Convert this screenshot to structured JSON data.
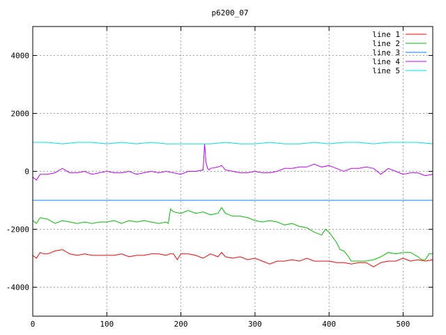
{
  "chart_data": {
    "type": "line",
    "title": "p6200_07",
    "xlabel": "",
    "ylabel": "",
    "xlim": [
      0,
      540
    ],
    "ylim": [
      -5000,
      5000
    ],
    "x_ticks": [
      0,
      100,
      200,
      300,
      400,
      500
    ],
    "y_ticks": [
      -4000,
      -2000,
      0,
      2000,
      4000
    ],
    "grid": true,
    "legend_position": "top-right",
    "series": [
      {
        "name": "line 1",
        "color": "#ff0000",
        "x": [
          0,
          5,
          10,
          15,
          20,
          30,
          40,
          50,
          60,
          70,
          80,
          90,
          100,
          110,
          120,
          130,
          140,
          150,
          160,
          170,
          180,
          185,
          190,
          195,
          200,
          210,
          220,
          230,
          240,
          250,
          255,
          260,
          270,
          280,
          290,
          300,
          310,
          320,
          330,
          340,
          350,
          360,
          370,
          380,
          390,
          400,
          410,
          420,
          430,
          440,
          450,
          460,
          470,
          480,
          490,
          500,
          510,
          520,
          530,
          540
        ],
        "values": [
          -2900,
          -3000,
          -2800,
          -2850,
          -2850,
          -2750,
          -2700,
          -2850,
          -2900,
          -2850,
          -2900,
          -2900,
          -2900,
          -2900,
          -2850,
          -2950,
          -2900,
          -2900,
          -2850,
          -2850,
          -2900,
          -2850,
          -2850,
          -3050,
          -2850,
          -2850,
          -2900,
          -3000,
          -2850,
          -2950,
          -2800,
          -2950,
          -3000,
          -2950,
          -3050,
          -3000,
          -3100,
          -3200,
          -3100,
          -3100,
          -3050,
          -3100,
          -3000,
          -3100,
          -3100,
          -3100,
          -3150,
          -3150,
          -3200,
          -3150,
          -3150,
          -3300,
          -3150,
          -3100,
          -3100,
          -3000,
          -3100,
          -3050,
          -3100,
          -3050
        ]
      },
      {
        "name": "line 2",
        "color": "#00c000",
        "x": [
          0,
          5,
          10,
          20,
          30,
          40,
          50,
          60,
          70,
          80,
          90,
          100,
          110,
          120,
          130,
          140,
          150,
          160,
          170,
          180,
          183,
          186,
          190,
          200,
          210,
          220,
          230,
          240,
          250,
          255,
          260,
          270,
          280,
          290,
          300,
          310,
          320,
          330,
          340,
          350,
          360,
          370,
          380,
          390,
          395,
          400,
          410,
          415,
          420,
          425,
          430,
          440,
          450,
          460,
          470,
          480,
          490,
          500,
          510,
          520,
          525,
          530,
          535,
          540
        ],
        "values": [
          -1700,
          -1800,
          -1600,
          -1650,
          -1800,
          -1700,
          -1750,
          -1800,
          -1750,
          -1800,
          -1750,
          -1750,
          -1700,
          -1800,
          -1700,
          -1750,
          -1700,
          -1750,
          -1800,
          -1750,
          -1800,
          -1300,
          -1400,
          -1450,
          -1350,
          -1450,
          -1400,
          -1500,
          -1450,
          -1250,
          -1450,
          -1550,
          -1550,
          -1600,
          -1700,
          -1750,
          -1700,
          -1750,
          -1850,
          -1800,
          -1900,
          -1950,
          -2100,
          -2200,
          -2000,
          -2100,
          -2450,
          -2700,
          -2750,
          -2900,
          -3100,
          -3100,
          -3100,
          -3050,
          -2950,
          -2800,
          -2850,
          -2800,
          -2800,
          -2950,
          -3050,
          -3050,
          -2850,
          -2850
        ]
      },
      {
        "name": "line 3",
        "color": "#0080ff",
        "x": [
          0,
          540
        ],
        "values": [
          -1000,
          -1000
        ]
      },
      {
        "name": "line 4",
        "color": "#c000ff",
        "x": [
          0,
          5,
          10,
          20,
          30,
          40,
          50,
          60,
          70,
          80,
          90,
          100,
          110,
          120,
          130,
          140,
          150,
          160,
          170,
          180,
          190,
          200,
          210,
          220,
          230,
          232,
          234,
          236,
          238,
          240,
          250,
          255,
          260,
          270,
          280,
          290,
          300,
          310,
          320,
          330,
          340,
          350,
          360,
          370,
          380,
          390,
          400,
          410,
          420,
          430,
          440,
          450,
          460,
          470,
          480,
          490,
          500,
          510,
          520,
          530,
          540
        ],
        "values": [
          -200,
          -300,
          -100,
          -100,
          -50,
          100,
          -50,
          -50,
          0,
          -100,
          -50,
          0,
          -50,
          -50,
          0,
          -100,
          -50,
          0,
          -50,
          0,
          -50,
          -100,
          0,
          0,
          50,
          950,
          300,
          100,
          50,
          100,
          150,
          200,
          50,
          0,
          -50,
          -50,
          0,
          -50,
          -50,
          0,
          100,
          100,
          150,
          150,
          250,
          150,
          200,
          100,
          0,
          100,
          100,
          150,
          100,
          -100,
          100,
          0,
          -100,
          -50,
          -50,
          -150,
          -100
        ]
      },
      {
        "name": "line 5",
        "color": "#00e0e0",
        "x": [
          0,
          20,
          40,
          60,
          80,
          100,
          120,
          140,
          160,
          180,
          200,
          220,
          240,
          260,
          280,
          300,
          320,
          340,
          360,
          380,
          400,
          420,
          440,
          460,
          480,
          500,
          520,
          540
        ],
        "values": [
          1000,
          1000,
          950,
          1000,
          1000,
          950,
          1000,
          950,
          1000,
          950,
          950,
          950,
          950,
          1000,
          950,
          950,
          1000,
          950,
          950,
          1000,
          950,
          1000,
          1000,
          950,
          1000,
          1000,
          1000,
          950
        ]
      }
    ]
  }
}
